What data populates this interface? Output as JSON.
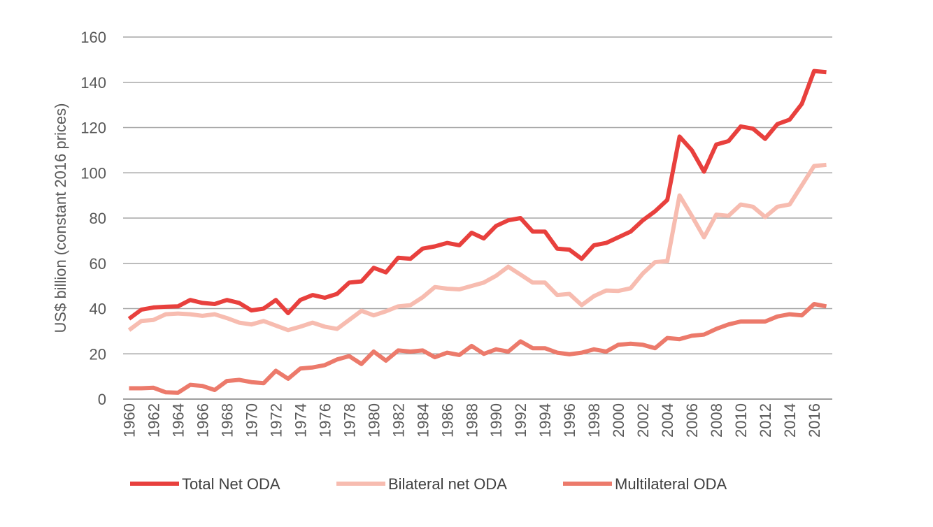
{
  "chart_data": {
    "type": "line",
    "title": "",
    "xlabel": "",
    "ylabel": "US$ billion (constant 2016 prices)",
    "ylim": [
      0,
      160
    ],
    "yticks": [
      0,
      20,
      40,
      60,
      80,
      100,
      120,
      140,
      160
    ],
    "x_tick_labels": [
      "1960",
      "1962",
      "1964",
      "1966",
      "1968",
      "1970",
      "1972",
      "1974",
      "1976",
      "1978",
      "1980",
      "1982",
      "1984",
      "1986",
      "1988",
      "1990",
      "1992",
      "1994",
      "1996",
      "1998",
      "2000",
      "2002",
      "2004",
      "2006",
      "2008",
      "2010",
      "2012",
      "2014",
      "2016"
    ],
    "x": [
      1960,
      1961,
      1962,
      1963,
      1964,
      1965,
      1966,
      1967,
      1968,
      1969,
      1970,
      1971,
      1972,
      1973,
      1974,
      1975,
      1976,
      1977,
      1978,
      1979,
      1980,
      1981,
      1982,
      1983,
      1984,
      1985,
      1986,
      1987,
      1988,
      1989,
      1990,
      1991,
      1992,
      1993,
      1994,
      1995,
      1996,
      1997,
      1998,
      1999,
      2000,
      2001,
      2002,
      2003,
      2004,
      2005,
      2006,
      2007,
      2008,
      2009,
      2010,
      2011,
      2012,
      2013,
      2014,
      2015,
      2016,
      2017
    ],
    "grid": "horizontal",
    "legend_position": "bottom",
    "series": [
      {
        "name": "Total Net ODA",
        "color": "#e8403d",
        "values": [
          35.5,
          39.5,
          40.5,
          40.8,
          41.0,
          43.8,
          42.5,
          42.0,
          43.8,
          42.5,
          39.2,
          40.0,
          43.8,
          38.0,
          43.8,
          46.0,
          44.8,
          46.5,
          51.5,
          52.0,
          58.0,
          56.0,
          62.5,
          62.0,
          66.5,
          67.5,
          69.0,
          68.0,
          73.5,
          71.0,
          76.5,
          79.0,
          80.0,
          74.0,
          74.0,
          66.5,
          66.0,
          62.0,
          68.0,
          69.0,
          71.5,
          74.0,
          79.0,
          83.0,
          88.0,
          116.0,
          110.0,
          100.5,
          112.5,
          114.0,
          120.5,
          119.5,
          115.0,
          121.5,
          123.5,
          130.5,
          145.0,
          144.5
        ]
      },
      {
        "name": "Bilateral net ODA",
        "color": "#f7bcb0",
        "values": [
          30.5,
          34.5,
          35.0,
          37.5,
          37.8,
          37.5,
          36.8,
          37.5,
          35.8,
          33.8,
          33.0,
          34.5,
          32.5,
          30.5,
          32.0,
          33.8,
          32.0,
          31.0,
          35.0,
          39.0,
          37.0,
          38.8,
          41.0,
          41.5,
          45.0,
          49.5,
          48.8,
          48.5,
          50.0,
          51.5,
          54.5,
          58.5,
          55.0,
          51.5,
          51.5,
          46.0,
          46.5,
          41.5,
          45.5,
          48.0,
          47.8,
          49.0,
          55.5,
          60.5,
          61.0,
          90.0,
          81.0,
          71.5,
          81.5,
          81.0,
          86.0,
          85.0,
          80.5,
          85.0,
          86.0,
          94.5,
          103.0,
          103.5
        ]
      },
      {
        "name": "Multilateral ODA",
        "color": "#ec7a6b",
        "values": [
          4.8,
          4.8,
          5.0,
          3.0,
          2.8,
          6.3,
          5.8,
          4.0,
          8.0,
          8.5,
          7.5,
          7.0,
          12.5,
          9.0,
          13.5,
          14.0,
          15.0,
          17.5,
          19.0,
          15.5,
          21.0,
          17.0,
          21.5,
          21.0,
          21.5,
          18.5,
          20.5,
          19.5,
          23.5,
          20.0,
          22.0,
          21.0,
          25.5,
          22.5,
          22.5,
          20.5,
          19.8,
          20.5,
          22.0,
          21.0,
          24.0,
          24.5,
          24.0,
          22.5,
          27.0,
          26.5,
          28.0,
          28.5,
          31.0,
          33.0,
          34.3,
          34.3,
          34.3,
          36.5,
          37.5,
          37.0,
          42.0,
          41.0
        ]
      }
    ]
  }
}
